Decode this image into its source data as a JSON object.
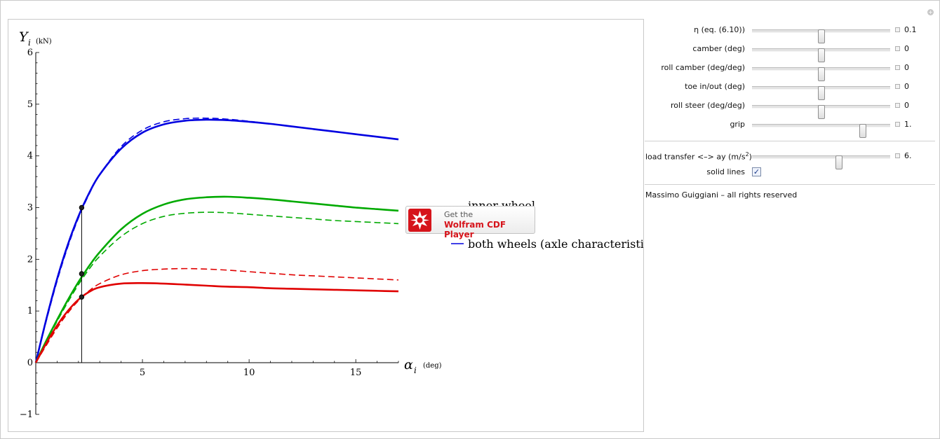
{
  "chart_data": {
    "type": "line",
    "xlim": [
      0,
      17.0
    ],
    "ylim": [
      -1,
      6
    ],
    "xticks": [
      5,
      10,
      15
    ],
    "yticks": [
      -1,
      0,
      1,
      2,
      3,
      4,
      5,
      6
    ],
    "y_tick_labels": [
      "−1",
      "0",
      "1",
      "2",
      "3",
      "4",
      "5",
      "6"
    ],
    "x_tick_labels": [
      "5",
      "10",
      "15"
    ],
    "ylabel": "Y",
    "ylabel_sub": "i",
    "yunit": "(kN)",
    "xlabel": "α",
    "xlabel_sub": "i",
    "xunit": "(deg)",
    "marker_alpha": 2.15,
    "marker_values": [
      3.0,
      1.72,
      1.27
    ],
    "grid": false,
    "series": [
      {
        "color": "#0000e0",
        "dashed": false,
        "x": [
          0,
          0.5,
          1,
          1.5,
          2,
          2.5,
          3,
          4,
          5,
          6,
          7,
          8,
          9,
          10,
          11,
          12,
          13,
          14,
          15,
          16,
          17
        ],
        "y": [
          0,
          0.85,
          1.62,
          2.28,
          2.83,
          3.28,
          3.64,
          4.14,
          4.45,
          4.61,
          4.68,
          4.7,
          4.69,
          4.66,
          4.62,
          4.57,
          4.52,
          4.47,
          4.42,
          4.37,
          4.32
        ]
      },
      {
        "color": "#0000e0",
        "dashed": true,
        "x": [
          0,
          0.5,
          1,
          1.5,
          2,
          2.5,
          3,
          4,
          5,
          6,
          7,
          8,
          9,
          10,
          11,
          12,
          13,
          14,
          15,
          16,
          17
        ],
        "y": [
          0,
          0.82,
          1.58,
          2.24,
          2.8,
          3.26,
          3.64,
          4.18,
          4.5,
          4.66,
          4.72,
          4.73,
          4.71,
          4.67,
          4.62,
          4.57,
          4.52,
          4.47,
          4.42,
          4.37,
          4.32
        ]
      },
      {
        "color": "#00aa00",
        "dashed": false,
        "x": [
          0,
          0.5,
          1,
          1.5,
          2,
          2.5,
          3,
          4,
          5,
          6,
          7,
          8,
          9,
          10,
          11,
          12,
          13,
          14,
          15,
          16,
          17
        ],
        "y": [
          0,
          0.43,
          0.83,
          1.21,
          1.56,
          1.87,
          2.14,
          2.58,
          2.88,
          3.06,
          3.16,
          3.2,
          3.21,
          3.19,
          3.16,
          3.12,
          3.08,
          3.04,
          3.0,
          2.97,
          2.94
        ]
      },
      {
        "color": "#00aa00",
        "dashed": true,
        "x": [
          0,
          0.5,
          1,
          1.5,
          2,
          2.5,
          3,
          4,
          5,
          6,
          7,
          8,
          9,
          10,
          11,
          12,
          13,
          14,
          15,
          16,
          17
        ],
        "y": [
          0,
          0.41,
          0.8,
          1.17,
          1.51,
          1.81,
          2.06,
          2.44,
          2.69,
          2.83,
          2.89,
          2.91,
          2.9,
          2.87,
          2.84,
          2.81,
          2.78,
          2.75,
          2.73,
          2.71,
          2.69
        ]
      },
      {
        "color": "#e00000",
        "dashed": false,
        "x": [
          0,
          0.5,
          1,
          1.5,
          2,
          2.5,
          3,
          4,
          5,
          6,
          7,
          8,
          9,
          10,
          11,
          12,
          13,
          14,
          15,
          16,
          17
        ],
        "y": [
          0,
          0.38,
          0.72,
          1.0,
          1.22,
          1.37,
          1.46,
          1.53,
          1.54,
          1.53,
          1.51,
          1.49,
          1.47,
          1.46,
          1.44,
          1.43,
          1.42,
          1.41,
          1.4,
          1.39,
          1.38
        ]
      },
      {
        "color": "#e00000",
        "dashed": true,
        "x": [
          0,
          0.5,
          1,
          1.5,
          2,
          2.5,
          3,
          4,
          5,
          6,
          7,
          8,
          9,
          10,
          11,
          12,
          13,
          14,
          15,
          16,
          17
        ],
        "y": [
          0,
          0.34,
          0.67,
          0.96,
          1.2,
          1.39,
          1.53,
          1.7,
          1.78,
          1.81,
          1.82,
          1.81,
          1.79,
          1.76,
          1.73,
          1.7,
          1.68,
          1.66,
          1.64,
          1.62,
          1.6
        ]
      }
    ],
    "legend": [
      {
        "text": "inner wheel",
        "color": "#0000e0"
      },
      {
        "text": "both wheels (axle characteristic)",
        "color": "#0000e0"
      }
    ]
  },
  "controls": {
    "sliders": [
      {
        "label": "η (eq. (6.10))",
        "value": "0.1",
        "fraction": 0.5
      },
      {
        "label": "camber (deg)",
        "value": "0",
        "fraction": 0.5
      },
      {
        "label": "roll camber (deg/deg)",
        "value": "0",
        "fraction": 0.5
      },
      {
        "label": "toe in/out (deg)",
        "value": "0",
        "fraction": 0.5
      },
      {
        "label": "roll steer (deg/deg)",
        "value": "0",
        "fraction": 0.5
      },
      {
        "label": "grip",
        "value": "1.",
        "fraction": 0.8
      }
    ],
    "load_transfer": {
      "label_prefix": "load transfer  <–>  ay (m/s",
      "label_sup": "2",
      "label_suffix": ")",
      "value": "6.",
      "fraction": 0.63
    },
    "solid_lines": {
      "label": "solid lines",
      "checked": true,
      "mark": "✓"
    },
    "credit": "Massimo Guiggiani – all rights reserved"
  },
  "badge": {
    "line1": "Get the",
    "line2": "Wolfram CDF Player"
  }
}
